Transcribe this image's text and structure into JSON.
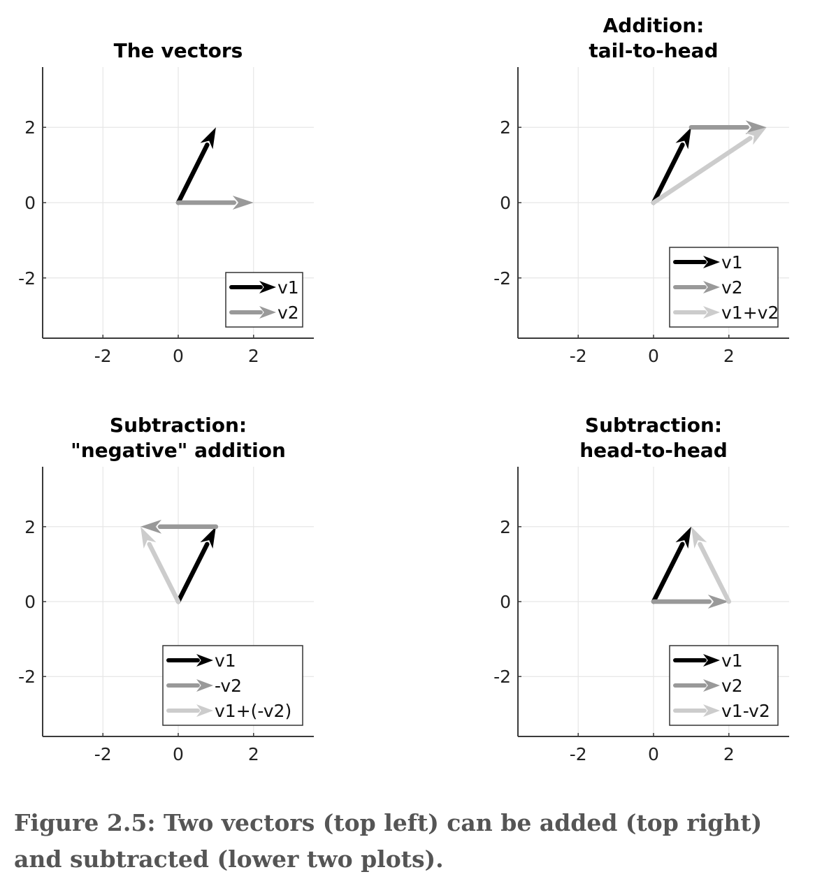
{
  "chart_data": [
    {
      "type": "vector",
      "title": [
        "The vectors"
      ],
      "xlim": [
        -3.6,
        3.6
      ],
      "ylim": [
        -3.6,
        3.6
      ],
      "xticks": [
        -2,
        0,
        2
      ],
      "yticks": [
        -2,
        0,
        2
      ],
      "grid": true,
      "legend_position": "bottom-right",
      "vectors": [
        {
          "name": "v1",
          "tail": [
            0,
            0
          ],
          "head": [
            1,
            2
          ],
          "color": "#000000"
        },
        {
          "name": "v2",
          "tail": [
            0,
            0
          ],
          "head": [
            2,
            0
          ],
          "color": "#999999"
        }
      ]
    },
    {
      "type": "vector",
      "title": [
        "Addition:",
        "tail-to-head"
      ],
      "xlim": [
        -3.6,
        3.6
      ],
      "ylim": [
        -3.6,
        3.6
      ],
      "xticks": [
        -2,
        0,
        2
      ],
      "yticks": [
        -2,
        0,
        2
      ],
      "grid": true,
      "legend_position": "bottom-right",
      "vectors": [
        {
          "name": "v1",
          "tail": [
            0,
            0
          ],
          "head": [
            1,
            2
          ],
          "color": "#000000"
        },
        {
          "name": "v2",
          "tail": [
            1,
            2
          ],
          "head": [
            3,
            2
          ],
          "color": "#999999"
        },
        {
          "name": "v1+v2",
          "tail": [
            0,
            0
          ],
          "head": [
            3,
            2
          ],
          "color": "#cccccc"
        }
      ]
    },
    {
      "type": "vector",
      "title": [
        "Subtraction:",
        "\"negative\" addition"
      ],
      "xlim": [
        -3.6,
        3.6
      ],
      "ylim": [
        -3.6,
        3.6
      ],
      "xticks": [
        -2,
        0,
        2
      ],
      "yticks": [
        -2,
        0,
        2
      ],
      "grid": true,
      "legend_position": "bottom-right",
      "vectors": [
        {
          "name": "v1",
          "tail": [
            0,
            0
          ],
          "head": [
            1,
            2
          ],
          "color": "#000000"
        },
        {
          "name": "-v2",
          "tail": [
            1,
            2
          ],
          "head": [
            -1,
            2
          ],
          "color": "#999999"
        },
        {
          "name": "v1+(-v2)",
          "tail": [
            0,
            0
          ],
          "head": [
            -1,
            2
          ],
          "color": "#cccccc"
        }
      ]
    },
    {
      "type": "vector",
      "title": [
        "Subtraction:",
        "head-to-head"
      ],
      "xlim": [
        -3.6,
        3.6
      ],
      "ylim": [
        -3.6,
        3.6
      ],
      "xticks": [
        -2,
        0,
        2
      ],
      "yticks": [
        -2,
        0,
        2
      ],
      "grid": true,
      "legend_position": "bottom-right",
      "vectors": [
        {
          "name": "v1",
          "tail": [
            0,
            0
          ],
          "head": [
            1,
            2
          ],
          "color": "#000000"
        },
        {
          "name": "v2",
          "tail": [
            0,
            0
          ],
          "head": [
            2,
            0
          ],
          "color": "#999999"
        },
        {
          "name": "v1-v2",
          "tail": [
            2,
            0
          ],
          "head": [
            1,
            2
          ],
          "color": "#cccccc"
        }
      ]
    }
  ],
  "caption": "Figure 2.5: Two vectors (top left) can be added (top right) and subtracted (lower two plots)."
}
